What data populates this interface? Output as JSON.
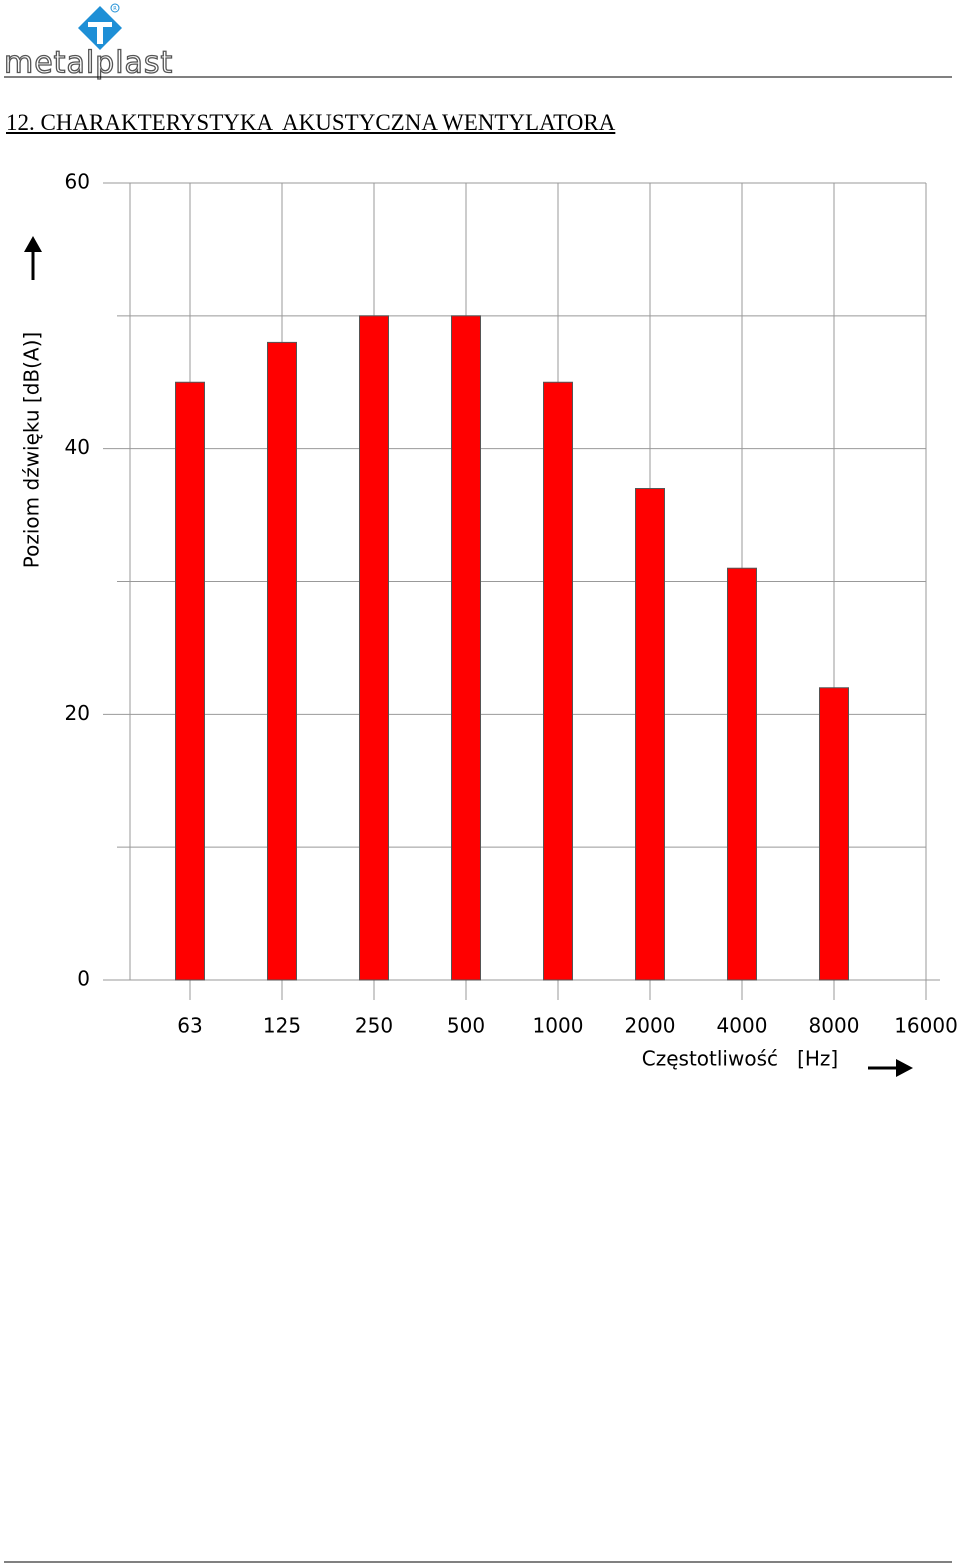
{
  "header": {
    "logo": "metalplast"
  },
  "title": "12. CHARAKTERYSTYKA  AKUSTYCZNA WENTYLATORA",
  "chart_data": {
    "type": "bar",
    "ylabel": "Poziom dźwięku [dB(A)]",
    "xlabel": "Częstotliwość   [Hz]",
    "categories": [
      "63",
      "125",
      "250",
      "500",
      "1000",
      "2000",
      "4000",
      "8000",
      "16000"
    ],
    "values": [
      45,
      48,
      50,
      50,
      45,
      37,
      31,
      22,
      null
    ],
    "color": "#ff0000",
    "ylim": [
      0,
      60
    ],
    "yticks": [
      0,
      20,
      40,
      60
    ],
    "yminor_ticks": [
      10,
      30,
      50
    ],
    "grid": true
  }
}
